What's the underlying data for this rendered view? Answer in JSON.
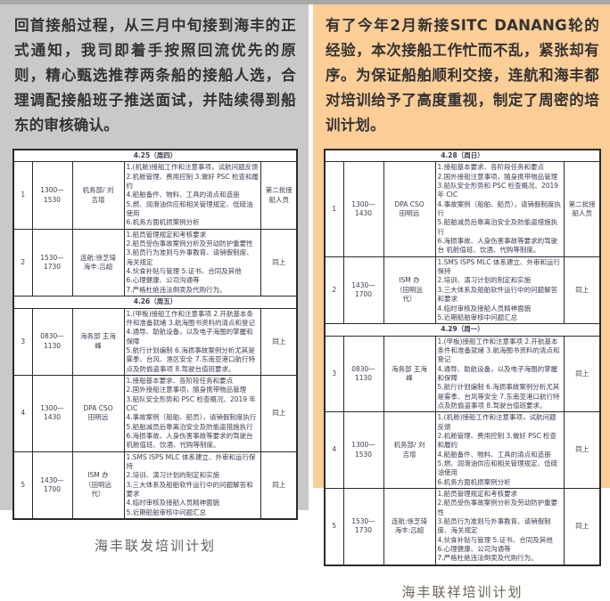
{
  "colors": {
    "left_panel_bg": "#c9c9c9",
    "right_panel_bg": "#fbcd97",
    "table_bg": "#ffffff",
    "table_border": "#2b2b2b",
    "top_strip": "#a8a8a8",
    "paragraph_text": "#333333"
  },
  "left_panel": {
    "paragraph": "回首接船过程，从三月中旬接到海丰的正式通知，我司即着手按照回流优先的原则，精心甄选推荐两条船的接船人选，合理调配接船班子推送面试，并陆续得到船东的审核确认。",
    "caption": "海丰联发培训计划",
    "table": {
      "sections": [
        {
          "date": "4.25（周四）",
          "rows": [
            {
              "no": "1",
              "time": "1300—\n1530",
              "presenter": "机务部/ 刘\n吉增",
              "content": "1.(机舱)接船工作和注意事项，试航问题反馈\n2.机舱管理、费用控制 3.做好 PSC 检查和履约\n4.船舶备件、物料、工具的清点和造册\n5.燃、润滑油供应和相关管理规定、低硫油使用\n6.机务方面机损案例分析",
              "audience": "第二批接船人员"
            },
            {
              "no": "2",
              "time": "1530—\n1730",
              "presenter": "连航:徐芝琦\n海丰:吕超",
              "content": "1.船员管理规定和考核要求\n2.船员受伤事故案例分析及劳动防护重要性\n3.船员行为准则与外事教育、请销假制度、海关规定\n4.伙食补贴与管理 5.证书、合同及其他\n6.心理健康、公司沟通等\n7.严格杜绝违法倒卖及代购行为。",
              "audience": "同上"
            }
          ]
        },
        {
          "date": "4.26（周五）",
          "rows": [
            {
              "no": "3",
              "time": "0830—\n1130",
              "presenter": "海务部 王海\n峰",
              "content": "1.(甲板)接船工作和注意事项 2.开航基本条件和准备就绪 3.航海图书资料的清点和登记\n4.通导、助航设备，以及电子海图的掌握和保障\n5.航行计划编制 6.海损事故案例分析尤其是雾季、台风、渔区安全 7.东南亚港口航行特点及防偷盗事项 8.驾驶台值班要求。",
              "audience": "同上"
            },
            {
              "no": "4",
              "time": "1300—\n1430",
              "presenter": "DPA CSO\n田明远",
              "content": "1.接船基本要求、各阶段任务和要点\n2.国外接船注意事项，随身携带物品管理\n3.船队安全形势和 PSC 检查概况、2019 年 CIC\n4.事故案例（船舶、船员），请销假制度执行\n5.船舶减员后靠离泊安全及防偷盗措施执行\n6.海损事故、人身伤害事故等要求的驾驶台 机舱值班、饮酒、代购等制度。",
              "audience": "同上"
            },
            {
              "no": "5",
              "time": "1430—\n1700",
              "presenter": "ISM 办\n（田明远\n代）",
              "content": "1.SMS ISPS MLC 体系建立、外审和运行保持\n2.培训、演习计划的制定和实施\n3.三大体系及船舶软件运行中的问题解答和要求\n4.临时审核及接船人员精神面貌\n5.近期船舶审核中问题汇总",
              "audience": "同上"
            }
          ]
        }
      ]
    }
  },
  "right_panel": {
    "paragraph": "有了今年2月新接SITC DANANG轮的经验，本次接船工作忙而不乱，紧张却有序。为保证船舶顺利交接，连航和海丰都对培训给予了高度重视，制定了周密的培训计划。",
    "caption": "海丰联祥培训计划",
    "table": {
      "sections": [
        {
          "date": "4.28（周日）",
          "rows": [
            {
              "no": "1",
              "time": "1300—\n1430",
              "presenter": "DPA CSO\n田明远",
              "content": "1.接船基本要求、各阶段任务和要点\n2.国外接船注意事项，随身携带物品管理\n3.船队安全形势和 PSC 检查概况、2019 年 CIC\n4.事故案例（船舶、船员），请销假制度执行\n5.船舶减员后靠离泊安全及防偷盗措施执行\n6.海损事故、人身伤害事故等要求的驾驶台 机舱值班、饮酒、代购等制度。",
              "audience": "第二批接船人员"
            },
            {
              "no": "2",
              "time": "1430—\n1700",
              "presenter": "ISM 办\n（田明远\n代）",
              "content": "1.SMS ISPS MLC 体系建立、外审和运行保持\n2.培训、演习计划的制定和实施\n3.三大体系及船舶软件运行中的问题解答和要求\n4.临时审核及接船人员精神面貌\n5.近期船舶审核中问题汇总",
              "audience": "同上"
            }
          ]
        },
        {
          "date": "4.29（周一）",
          "rows": [
            {
              "no": "3",
              "time": "0830—\n1130",
              "presenter": "海务部 王海\n峰",
              "content": "1.(甲板)接船工作和注意事项 2.开航基本条件和准备就绪 3.航海图书资料的清点和登记\n4.通导、助航设备，以及电子海图的掌握和保障\n5.航行计划编制 6.海损事故案例分析尤其是雾季、台风等安全 7.东南亚港口航行特点及防偷盗事项 8.驾驶台值班要求。",
              "audience": "同上"
            },
            {
              "no": "4",
              "time": "1300—\n1530",
              "presenter": "机务部/ 刘\n吉增",
              "content": "1.(机舱)接船工作和注意事项，试航问题反馈\n2.机舱管理、费用控制 3.做好 PSC 检查和履约\n4.船舶备件、物料、工具的清点和造册\n5.燃、润滑油供应和相关管理规定、低硫油使用\n6.机务方面机损案例分析",
              "audience": "同上"
            },
            {
              "no": "5",
              "time": "1530—\n1730",
              "presenter": "连航:徐芝琦\n海丰:吕超",
              "content": "1.船员管理规定和考核要求\n2.船员受伤事故案例分析及劳动防护重要性\n3.船员行为准则与外事教育、请销假制度、海关规定\n4.伙食补贴与管理 5.证书、合同及其他\n6.心理健康、公司沟通等\n7.严格杜绝违法倒卖及代购行为。",
              "audience": "同上"
            }
          ]
        }
      ]
    }
  }
}
